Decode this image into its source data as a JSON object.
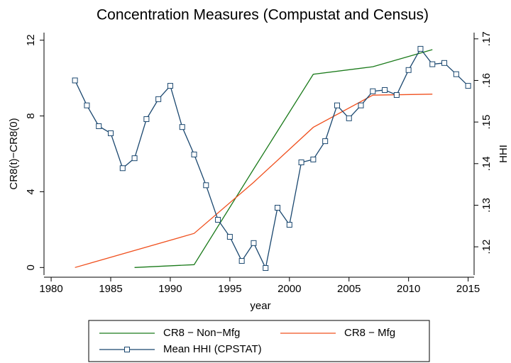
{
  "chart_data": {
    "type": "line",
    "title": "Concentration Measures (Compustat and Census)",
    "x_label": "year",
    "y_label": "CR8(t)−CR8(0)",
    "y2_label": "HHI",
    "xlim": [
      1979.4,
      2015.5
    ],
    "xticks": [
      1980,
      1985,
      1990,
      1995,
      2000,
      2005,
      2010,
      2015
    ],
    "ylim": [
      -0.4,
      12.4
    ],
    "yticks": [
      0,
      4,
      8,
      12
    ],
    "y2lim": [
      0.1132,
      0.1715
    ],
    "y2ticks": [
      {
        "value": 0.12,
        "label": ".12"
      },
      {
        "value": 0.13,
        "label": ".13"
      },
      {
        "value": 0.14,
        "label": ".14"
      },
      {
        "value": 0.15,
        "label": ".15"
      },
      {
        "value": 0.16,
        "label": ".16"
      },
      {
        "value": 0.17,
        "label": ".17"
      }
    ],
    "grid": false,
    "series": [
      {
        "name": "CR8 − Non−Mfg",
        "color": "#1a7a1a",
        "marker": "none",
        "x": [
          1987,
          1992,
          1997,
          2002,
          2007,
          2012
        ],
        "values": [
          0,
          0.15,
          5.2,
          10.2,
          10.6,
          11.5
        ]
      },
      {
        "name": "CR8 − Mfg",
        "color": "#f0501e",
        "marker": "none",
        "x": [
          1982,
          1992,
          1997,
          2002,
          2007,
          2012
        ],
        "values": [
          0,
          1.8,
          4.5,
          7.4,
          9.1,
          9.15
        ]
      },
      {
        "name": "Mean HHI (CPSTAT)",
        "color": "#1a476f",
        "marker": "square",
        "axis": "y2",
        "x": [
          1982,
          1983,
          1984,
          1985,
          1986,
          1987,
          1988,
          1989,
          1990,
          1991,
          1992,
          1993,
          1994,
          1995,
          1996,
          1997,
          1998,
          1999,
          2000,
          2001,
          2002,
          2003,
          2004,
          2005,
          2006,
          2007,
          2008,
          2009,
          2010,
          2011,
          2012,
          2013,
          2014,
          2015
        ],
        "values": [
          0.16,
          0.154,
          0.149,
          0.1473,
          0.1389,
          0.1413,
          0.1507,
          0.1555,
          0.1587,
          0.1488,
          0.1422,
          0.1348,
          0.1265,
          0.1224,
          0.1166,
          0.1209,
          0.1149,
          0.1294,
          0.1253,
          0.1403,
          0.141,
          0.1454,
          0.154,
          0.1509,
          0.154,
          0.1574,
          0.1577,
          0.1565,
          0.1625,
          0.1676,
          0.1639,
          0.1642,
          0.1615,
          0.1587
        ]
      }
    ],
    "legend_position": "bottom"
  }
}
